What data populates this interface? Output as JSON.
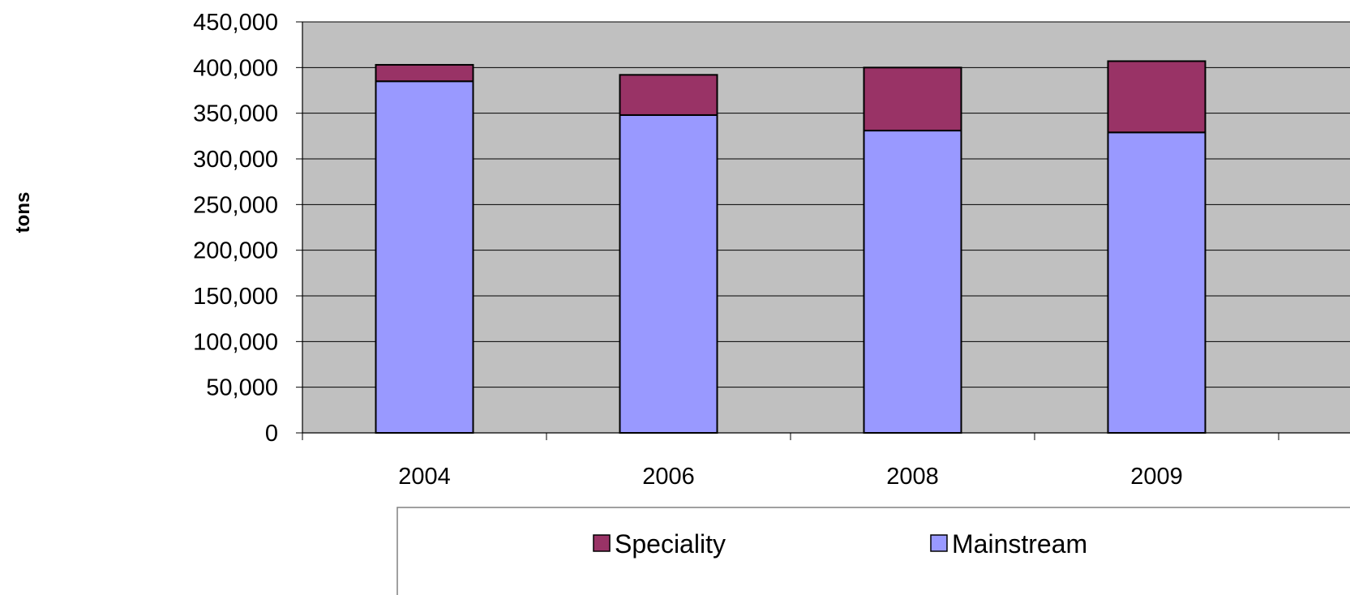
{
  "chart_data": {
    "type": "bar",
    "stacked": true,
    "title": "",
    "xlabel": "",
    "ylabel": "tons",
    "ylim": [
      0,
      450000
    ],
    "yticks": [
      0,
      50000,
      100000,
      150000,
      200000,
      250000,
      300000,
      350000,
      400000,
      450000
    ],
    "ytick_labels": [
      "0",
      "50,000",
      "100,000",
      "150,000",
      "200,000",
      "250,000",
      "300,000",
      "350,000",
      "400,000",
      "450,000"
    ],
    "categories": [
      "2004",
      "2006",
      "2008",
      "2009"
    ],
    "series": [
      {
        "name": "Mainstream",
        "color": "#9999ff",
        "values": [
          385000,
          348000,
          331000,
          329000
        ]
      },
      {
        "name": "Speciality",
        "color": "#993366",
        "values": [
          18000,
          44000,
          69000,
          78000
        ]
      }
    ],
    "legend_order": [
      "Speciality",
      "Mainstream"
    ],
    "legend_position": "bottom",
    "plot_background": "#c0c0c0",
    "grid": true
  }
}
